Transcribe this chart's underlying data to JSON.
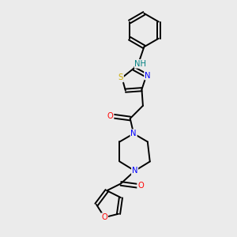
{
  "background_color": "#ebebeb",
  "bond_color": "#000000",
  "atom_colors": {
    "N": "#0000ff",
    "O": "#ff0000",
    "S": "#ccaa00",
    "H": "#008080",
    "C": "#000000"
  },
  "figsize": [
    3.0,
    3.0
  ],
  "dpi": 100
}
